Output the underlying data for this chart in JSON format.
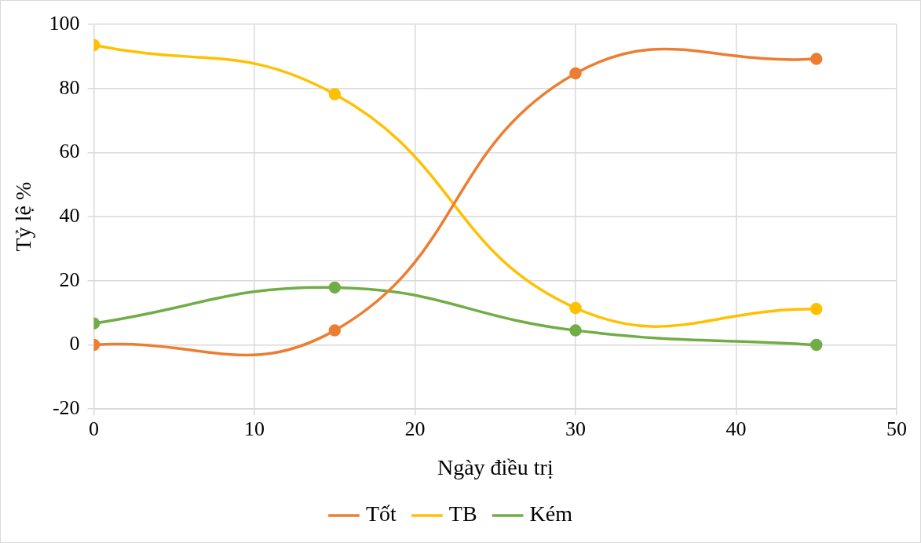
{
  "chart_data": {
    "type": "line",
    "xlabel": "Ngày điều trị",
    "ylabel": "Tỷ lệ %",
    "xlim": [
      0,
      50
    ],
    "xticks": [
      0,
      10,
      20,
      30,
      40,
      50
    ],
    "ylim": [
      -20,
      100
    ],
    "yticks": [
      -20,
      0,
      20,
      40,
      60,
      80,
      100
    ],
    "grid": true,
    "legend": "bottom",
    "marker": "circle",
    "line_style": "solid",
    "x": [
      0,
      15,
      30,
      45
    ],
    "series": [
      {
        "name": "Tốt",
        "color": "#ed7d31",
        "values": [
          0,
          4.5,
          84.7,
          89.2
        ]
      },
      {
        "name": "TB",
        "color": "#ffc000",
        "values": [
          93.5,
          78.2,
          11.5,
          11.2
        ]
      },
      {
        "name": "Kém",
        "color": "#70ad47",
        "values": [
          6.7,
          17.9,
          4.5,
          0
        ]
      }
    ]
  }
}
